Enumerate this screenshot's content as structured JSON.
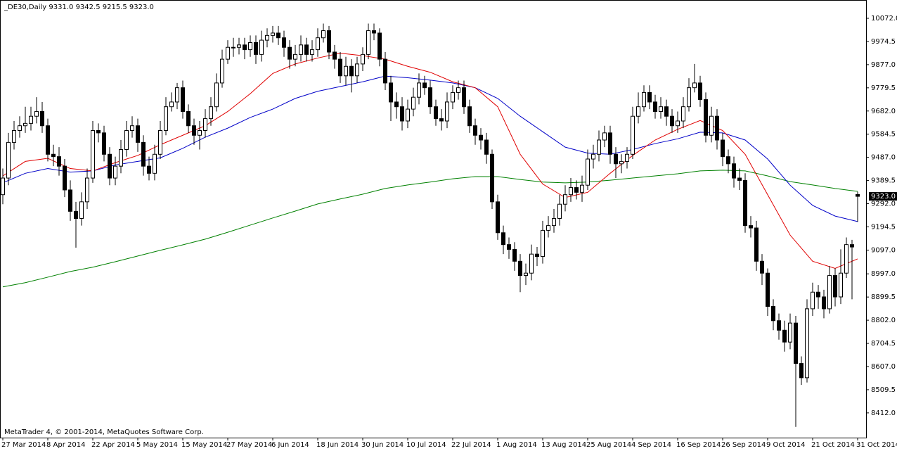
{
  "chart_data": {
    "type": "candlestick",
    "title": "_DE30,Daily  9331.0 9342.5 9215.5 9323.0",
    "footer": "MetaTrader 4, © 2001-2014, MetaQuotes Software Corp.",
    "categories": [
      "27 Mar 2014",
      null,
      null,
      null,
      null,
      null,
      null,
      null,
      "8 Apr 2014",
      null,
      null,
      null,
      null,
      null,
      null,
      null,
      "22 Apr 2014",
      null,
      null,
      null,
      null,
      null,
      null,
      null,
      "5 May 2014",
      null,
      null,
      null,
      null,
      null,
      null,
      null,
      "15 May 2014",
      null,
      null,
      null,
      null,
      null,
      null,
      null,
      "27 May 2014",
      null,
      null,
      null,
      null,
      null,
      null,
      null,
      "6 Jun 2014",
      null,
      null,
      null,
      null,
      null,
      null,
      null,
      "18 Jun 2014",
      null,
      null,
      null,
      null,
      null,
      null,
      null,
      "30 Jun 2014",
      null,
      null,
      null,
      null,
      null,
      null,
      null,
      "10 Jul 2014",
      null,
      null,
      null,
      null,
      null,
      null,
      null,
      "22 Jul 2014",
      null,
      null,
      null,
      null,
      null,
      null,
      null,
      "1 Aug 2014",
      null,
      null,
      null,
      null,
      null,
      null,
      null,
      "13 Aug 2014",
      null,
      null,
      null,
      null,
      null,
      null,
      null,
      "25 Aug 2014",
      null,
      null,
      null,
      null,
      null,
      null,
      null,
      "4 Sep 2014",
      null,
      null,
      null,
      null,
      null,
      null,
      null,
      "16 Sep 2014",
      null,
      null,
      null,
      null,
      null,
      null,
      null,
      "26 Sep 2014",
      null,
      null,
      null,
      null,
      null,
      null,
      null,
      "9 Oct 2014",
      null,
      null,
      null,
      null,
      null,
      null,
      null,
      "21 Oct 2014",
      null,
      null,
      null,
      null,
      null,
      null,
      null,
      "31 Oct 2014"
    ],
    "open": [
      9330,
      9400,
      9550,
      9600,
      9620,
      9630,
      9660,
      9680,
      9620,
      9500,
      9490,
      9450,
      9350,
      9260,
      9230,
      9300,
      9400,
      9600,
      9590,
      9500,
      9400,
      9450,
      9520,
      9600,
      9620,
      9550,
      9450,
      9420,
      9500,
      9600,
      9700,
      9720,
      9780,
      9680,
      9620,
      9580,
      9600,
      9650,
      9700,
      9800,
      9900,
      9950,
      9950,
      9960,
      9940,
      9970,
      9920,
      9980,
      10000,
      10010,
      9990,
      9950,
      9900,
      9920,
      9960,
      9920,
      9940,
      9990,
      10020,
      9930,
      9900,
      9830,
      9870,
      9830,
      9880,
      9920,
      10020,
      10010,
      9900,
      9800,
      9720,
      9700,
      9640,
      9690,
      9740,
      9800,
      9780,
      9700,
      9650,
      9640,
      9720,
      9760,
      9780,
      9700,
      9620,
      9580,
      9560,
      9500,
      9300,
      9170,
      9120,
      9100,
      9050,
      8990,
      9000,
      9080,
      9070,
      9180,
      9200,
      9230,
      9290,
      9330,
      9360,
      9340,
      9370,
      9480,
      9500,
      9560,
      9590,
      9500,
      9460,
      9470,
      9500,
      9660,
      9700,
      9760,
      9720,
      9680,
      9700,
      9660,
      9620,
      9640,
      9700,
      9780,
      9800,
      9730,
      9580,
      9660,
      9560,
      9490,
      9460,
      9400,
      9390,
      9200,
      9190,
      9050,
      9000,
      8860,
      8800,
      8760,
      8710,
      8790,
      8620,
      8560,
      8850,
      8920,
      8900,
      8850,
      8990,
      8900,
      9000,
      9120,
      9331
    ],
    "high": [
      9440,
      9590,
      9640,
      9660,
      9700,
      9700,
      9740,
      9720,
      9650,
      9540,
      9530,
      9480,
      9390,
      9300,
      9340,
      9440,
      9640,
      9630,
      9620,
      9530,
      9490,
      9560,
      9640,
      9660,
      9650,
      9580,
      9490,
      9540,
      9640,
      9740,
      9760,
      9800,
      9810,
      9710,
      9650,
      9640,
      9690,
      9740,
      9840,
      9940,
      9980,
      9990,
      9990,
      9990,
      10000,
      10000,
      10020,
      10030,
      10040,
      10040,
      10020,
      9980,
      9960,
      10000,
      9990,
      9980,
      10030,
      10050,
      10040,
      9960,
      9930,
      9910,
      9900,
      9910,
      9950,
      10050,
      10050,
      10030,
      9930,
      9830,
      9760,
      9740,
      9730,
      9780,
      9840,
      9830,
      9810,
      9730,
      9690,
      9760,
      9790,
      9810,
      9810,
      9730,
      9650,
      9610,
      9590,
      9520,
      9330,
      9200,
      9150,
      9130,
      9080,
      9040,
      9120,
      9110,
      9220,
      9240,
      9270,
      9330,
      9370,
      9400,
      9390,
      9410,
      9520,
      9540,
      9600,
      9620,
      9620,
      9530,
      9500,
      9530,
      9700,
      9760,
      9790,
      9790,
      9750,
      9740,
      9730,
      9690,
      9680,
      9740,
      9820,
      9880,
      9830,
      9760,
      9700,
      9690,
      9590,
      9520,
      9490,
      9440,
      9420,
      9240,
      9220,
      9080,
      9020,
      8890,
      8830,
      8800,
      8830,
      8820,
      8650,
      8890,
      8960,
      8950,
      8930,
      9030,
      9020,
      9100,
      9150,
      9140,
      9342.5
    ],
    "low": [
      9290,
      9370,
      9520,
      9570,
      9590,
      9600,
      9630,
      9590,
      9470,
      9450,
      9410,
      9320,
      9220,
      9107,
      9200,
      9270,
      9380,
      9550,
      9470,
      9370,
      9370,
      9420,
      9490,
      9570,
      9510,
      9410,
      9390,
      9390,
      9480,
      9580,
      9680,
      9690,
      9650,
      9590,
      9540,
      9520,
      9570,
      9620,
      9680,
      9780,
      9880,
      9910,
      9920,
      9900,
      9910,
      9880,
      9890,
      9950,
      9970,
      9960,
      9910,
      9860,
      9870,
      9890,
      9890,
      9890,
      9910,
      9970,
      9900,
      9860,
      9800,
      9790,
      9760,
      9800,
      9850,
      9900,
      9980,
      9870,
      9770,
      9640,
      9650,
      9600,
      9610,
      9660,
      9710,
      9750,
      9670,
      9620,
      9600,
      9610,
      9690,
      9730,
      9670,
      9590,
      9540,
      9520,
      9460,
      9270,
      9140,
      9080,
      9060,
      9010,
      8920,
      8950,
      8970,
      9030,
      9040,
      9150,
      9170,
      9200,
      9260,
      9300,
      9310,
      9300,
      9350,
      9440,
      9470,
      9530,
      9460,
      9400,
      9420,
      9440,
      9480,
      9630,
      9680,
      9690,
      9650,
      9650,
      9620,
      9590,
      9590,
      9610,
      9680,
      9760,
      9700,
      9550,
      9550,
      9520,
      9450,
      9420,
      9360,
      9350,
      9170,
      9150,
      9010,
      8950,
      8820,
      8760,
      8720,
      8670,
      8680,
      8353,
      8530,
      8540,
      8820,
      8850,
      8810,
      8830,
      8860,
      8870,
      8980,
      8890,
      9215.5
    ],
    "close": [
      9400,
      9550,
      9600,
      9620,
      9630,
      9660,
      9680,
      9620,
      9500,
      9490,
      9450,
      9350,
      9260,
      9230,
      9300,
      9400,
      9600,
      9590,
      9500,
      9400,
      9450,
      9520,
      9600,
      9620,
      9550,
      9450,
      9420,
      9500,
      9600,
      9700,
      9720,
      9780,
      9680,
      9620,
      9580,
      9600,
      9650,
      9700,
      9800,
      9900,
      9950,
      9950,
      9960,
      9940,
      9970,
      9920,
      9980,
      10000,
      10010,
      9990,
      9950,
      9900,
      9920,
      9960,
      9920,
      9940,
      9990,
      10020,
      9930,
      9900,
      9830,
      9870,
      9830,
      9880,
      9920,
      10020,
      10010,
      9900,
      9800,
      9720,
      9700,
      9640,
      9690,
      9740,
      9800,
      9780,
      9700,
      9650,
      9640,
      9720,
      9760,
      9780,
      9700,
      9620,
      9580,
      9560,
      9500,
      9300,
      9170,
      9120,
      9100,
      9050,
      8990,
      9000,
      9080,
      9070,
      9180,
      9200,
      9230,
      9290,
      9330,
      9360,
      9340,
      9370,
      9480,
      9500,
      9560,
      9590,
      9500,
      9460,
      9470,
      9500,
      9660,
      9700,
      9760,
      9720,
      9680,
      9700,
      9660,
      9620,
      9640,
      9700,
      9780,
      9800,
      9730,
      9580,
      9660,
      9560,
      9490,
      9460,
      9400,
      9390,
      9200,
      9190,
      9050,
      9000,
      8860,
      8800,
      8760,
      8710,
      8790,
      8620,
      8560,
      8850,
      8920,
      8900,
      8850,
      8990,
      8900,
      9000,
      9120,
      9110,
      9323
    ],
    "last_label": "9323.0",
    "up_color": "#ffffff",
    "down_color": "#000000",
    "moving_averages": [
      {
        "color": "#008000",
        "x": [
          0,
          4,
          8,
          12,
          16,
          20,
          24,
          28,
          32,
          36,
          40,
          44,
          48,
          52,
          56,
          60,
          64,
          68,
          72,
          76,
          80,
          84,
          88,
          92,
          96,
          100,
          104,
          108,
          112,
          116,
          120,
          124,
          128,
          132,
          136,
          140,
          144,
          148,
          152
        ],
        "values": [
          8942,
          8960,
          8983,
          9007,
          9025,
          9048,
          9072,
          9096,
          9119,
          9143,
          9172,
          9202,
          9232,
          9261,
          9291,
          9312,
          9332,
          9356,
          9371,
          9383,
          9397,
          9406,
          9406,
          9394,
          9383,
          9380,
          9383,
          9391,
          9400,
          9409,
          9418,
          9430,
          9433,
          9430,
          9409,
          9385,
          9371,
          9356,
          9344
        ]
      },
      {
        "color": "#0000c8",
        "x": [
          0,
          4,
          8,
          12,
          16,
          20,
          24,
          28,
          32,
          36,
          40,
          44,
          48,
          52,
          56,
          60,
          64,
          68,
          72,
          76,
          80,
          84,
          88,
          92,
          96,
          100,
          104,
          108,
          112,
          116,
          120,
          124,
          128,
          132,
          136,
          140,
          144,
          148,
          152
        ],
        "values": [
          9380,
          9420,
          9440,
          9425,
          9430,
          9455,
          9470,
          9485,
          9525,
          9572,
          9610,
          9655,
          9690,
          9735,
          9765,
          9785,
          9805,
          9829,
          9822,
          9812,
          9800,
          9780,
          9735,
          9660,
          9595,
          9530,
          9505,
          9500,
          9520,
          9545,
          9565,
          9593,
          9590,
          9560,
          9480,
          9370,
          9285,
          9240,
          9217
        ]
      },
      {
        "color": "#e00000",
        "x": [
          0,
          4,
          8,
          12,
          16,
          20,
          24,
          28,
          32,
          36,
          40,
          44,
          48,
          52,
          56,
          60,
          64,
          68,
          72,
          76,
          80,
          84,
          88,
          92,
          96,
          100,
          104,
          108,
          112,
          116,
          120,
          124,
          128,
          132,
          136,
          140,
          144,
          148,
          152
        ],
        "values": [
          9409,
          9470,
          9483,
          9440,
          9430,
          9465,
          9495,
          9540,
          9580,
          9620,
          9680,
          9755,
          9840,
          9880,
          9905,
          9925,
          9915,
          9900,
          9870,
          9845,
          9805,
          9780,
          9700,
          9500,
          9375,
          9318,
          9340,
          9420,
          9495,
          9560,
          9605,
          9642,
          9600,
          9500,
          9330,
          9160,
          9050,
          9020,
          9060
        ]
      }
    ],
    "ylim": [
      8308,
      10149
    ],
    "yticks": [
      {
        "value": 10072,
        "label": "10072.0"
      },
      9974.5,
      {
        "value": 9877,
        "label": "9877.0"
      },
      9779.5,
      {
        "value": 9682,
        "label": "9682.0"
      },
      9584.5,
      {
        "value": 9487,
        "label": "9487.0"
      },
      9389.5,
      {
        "value": 9292,
        "label": "9292.0"
      },
      9194.5,
      {
        "value": 9097,
        "label": "9097.0"
      },
      {
        "value": 8997,
        "label": "8997.0"
      },
      8899.5,
      {
        "value": 8802,
        "label": "8802.0"
      },
      8704.5,
      {
        "value": 8607,
        "label": "8607.0"
      },
      8509.5,
      {
        "value": 8412,
        "label": "8412.0"
      }
    ]
  }
}
